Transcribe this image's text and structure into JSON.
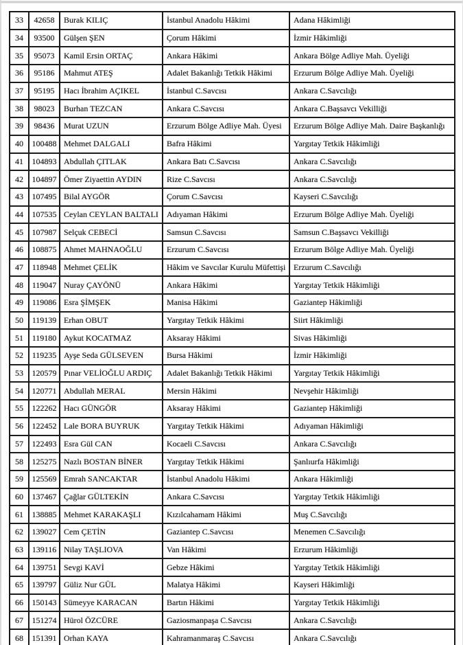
{
  "document": {
    "kind_label": "scanned appointment decree table (rows 33-68)",
    "colors": {
      "text": "#181818",
      "grid_line": "#1b1b1b",
      "scan_edge": "#c6c6c6"
    }
  },
  "table": {
    "rows": [
      [
        "33",
        "42658",
        "Burak KILIÇ",
        "İstanbul Anadolu Hâkimi",
        "Adana Hâkimliği"
      ],
      [
        "34",
        "93500",
        "Gülşen ŞEN",
        "Çorum Hâkimi",
        "İzmir Hâkimliği"
      ],
      [
        "35",
        "95073",
        "Kamil Ersin ORTAÇ",
        "Ankara Hâkimi",
        "Ankara Bölge Adliye Mah. Üyeliği"
      ],
      [
        "36",
        "95186",
        "Mahmut ATEŞ",
        "Adalet Bakanlığı Tetkik Hâkimi",
        "Erzurum Bölge Adliye Mah. Üyeliği"
      ],
      [
        "37",
        "95195",
        "Hacı İbrahim AÇIKEL",
        "İstanbul C.Savcısı",
        "Ankara C.Savcılığı"
      ],
      [
        "38",
        "98023",
        "Burhan TEZCAN",
        "Ankara C.Savcısı",
        "Ankara C.Başsavcı Vekilliği"
      ],
      [
        "39",
        "98436",
        "Murat UZUN",
        "Erzurum Bölge Adliye Mah. Üyesi",
        "Erzurum Bölge Adliye Mah. Daire Başkanlığı"
      ],
      [
        "40",
        "100488",
        "Mehmet DALGALI",
        "Bafra Hâkimi",
        "Yargıtay Tetkik Hâkimliği"
      ],
      [
        "41",
        "104893",
        "Abdullah ÇITLAK",
        "Ankara Batı C.Savcısı",
        "Ankara C.Savcılığı"
      ],
      [
        "42",
        "104897",
        "Ömer Ziyaettin AYDIN",
        "Rize C.Savcısı",
        "Ankara C.Savcılığı"
      ],
      [
        "43",
        "107495",
        "Bilal AYGÖR",
        "Çorum C.Savcısı",
        "Kayseri C.Savcılığı"
      ],
      [
        "44",
        "107535",
        "Ceylan CEYLAN BALTALI",
        "Adıyaman Hâkimi",
        "Erzurum Bölge Adliye Mah. Üyeliği"
      ],
      [
        "45",
        "107987",
        "Selçuk CEBECİ",
        "Samsun C.Savcısı",
        "Samsun C.Başsavcı Vekilliği"
      ],
      [
        "46",
        "108875",
        "Ahmet MAHNAOĞLU",
        "Erzurum C.Savcısı",
        "Erzurum Bölge Adliye Mah. Üyeliği"
      ],
      [
        "47",
        "118948",
        "Mehmet ÇELİK",
        "Hâkim ve Savcılar Kurulu Müfettişi",
        "Erzurum C.Savcılığı"
      ],
      [
        "48",
        "119047",
        "Nuray ÇAYÖNÜ",
        "Ankara Hâkimi",
        "Yargıtay Tetkik Hâkimliği"
      ],
      [
        "49",
        "119086",
        "Esra ŞİMŞEK",
        "Manisa Hâkimi",
        "Gaziantep Hâkimliği"
      ],
      [
        "50",
        "119139",
        "Erhan OBUT",
        "Yargıtay Tetkik Hâkimi",
        "Siirt Hâkimliği"
      ],
      [
        "51",
        "119180",
        "Aykut KOCATMAZ",
        "Aksaray Hâkimi",
        "Sivas Hâkimliği"
      ],
      [
        "52",
        "119235",
        "Ayşe Seda GÜLSEVEN",
        "Bursa Hâkimi",
        "İzmir Hâkimliği"
      ],
      [
        "53",
        "120579",
        "Pınar VELİOĞLU ARDIÇ",
        "Adalet Bakanlığı Tetkik Hâkimi",
        "Yargıtay Tetkik Hâkimliği"
      ],
      [
        "54",
        "120771",
        "Abdullah MERAL",
        "Mersin Hâkimi",
        "Nevşehir Hâkimliği"
      ],
      [
        "55",
        "122262",
        "Hacı GÜNGÖR",
        "Aksaray Hâkimi",
        "Gaziantep Hâkimliği"
      ],
      [
        "56",
        "122452",
        "Lale BORA BUYRUK",
        "Yargıtay Tetkik Hâkimi",
        "Adıyaman Hâkimliği"
      ],
      [
        "57",
        "122493",
        "Esra Gül CAN",
        "Kocaeli C.Savcısı",
        "Ankara C.Savcılığı"
      ],
      [
        "58",
        "125275",
        "Nazlı BOSTAN BİNER",
        "Yargıtay Tetkik Hâkimi",
        "Şanlıurfa Hâkimliği"
      ],
      [
        "59",
        "125569",
        "Emrah SANCAKTAR",
        "İstanbul Anadolu Hâkimi",
        "Ankara Hâkimliği"
      ],
      [
        "60",
        "137467",
        "Çağlar GÜLTEKİN",
        "Ankara C.Savcısı",
        "Yargıtay Tetkik Hâkimliği"
      ],
      [
        "61",
        "138885",
        "Mehmet KARAKAŞLI",
        "Kızılcahamam Hâkimi",
        "Muş C.Savcılığı"
      ],
      [
        "62",
        "139027",
        "Cem ÇETİN",
        "Gaziantep C.Savcısı",
        "Menemen C.Savcılığı"
      ],
      [
        "63",
        "139116",
        "Nilay TAŞLIOVA",
        "Van Hâkimi",
        "Erzurum Hâkimliği"
      ],
      [
        "64",
        "139751",
        "Sevgi KAVİ",
        "Gebze Hâkimi",
        "Yargıtay Tetkik Hâkimliği"
      ],
      [
        "65",
        "139797",
        "Güliz Nur GÜL",
        "Malatya Hâkimi",
        "Kayseri Hâkimliği"
      ],
      [
        "66",
        "150143",
        "Sümeyye KARACAN",
        "Bartın Hâkimi",
        "Yargıtay Tetkik Hâkimliği"
      ],
      [
        "67",
        "151274",
        "Hürol ÖZCÜRE",
        "Gaziosmanpaşa C.Savcısı",
        "Ankara C.Savcılığı"
      ],
      [
        "68",
        "151391",
        "Orhan KAYA",
        "Kahramanmaraş C.Savcısı",
        "Ankara C.Savcılığı"
      ]
    ]
  }
}
